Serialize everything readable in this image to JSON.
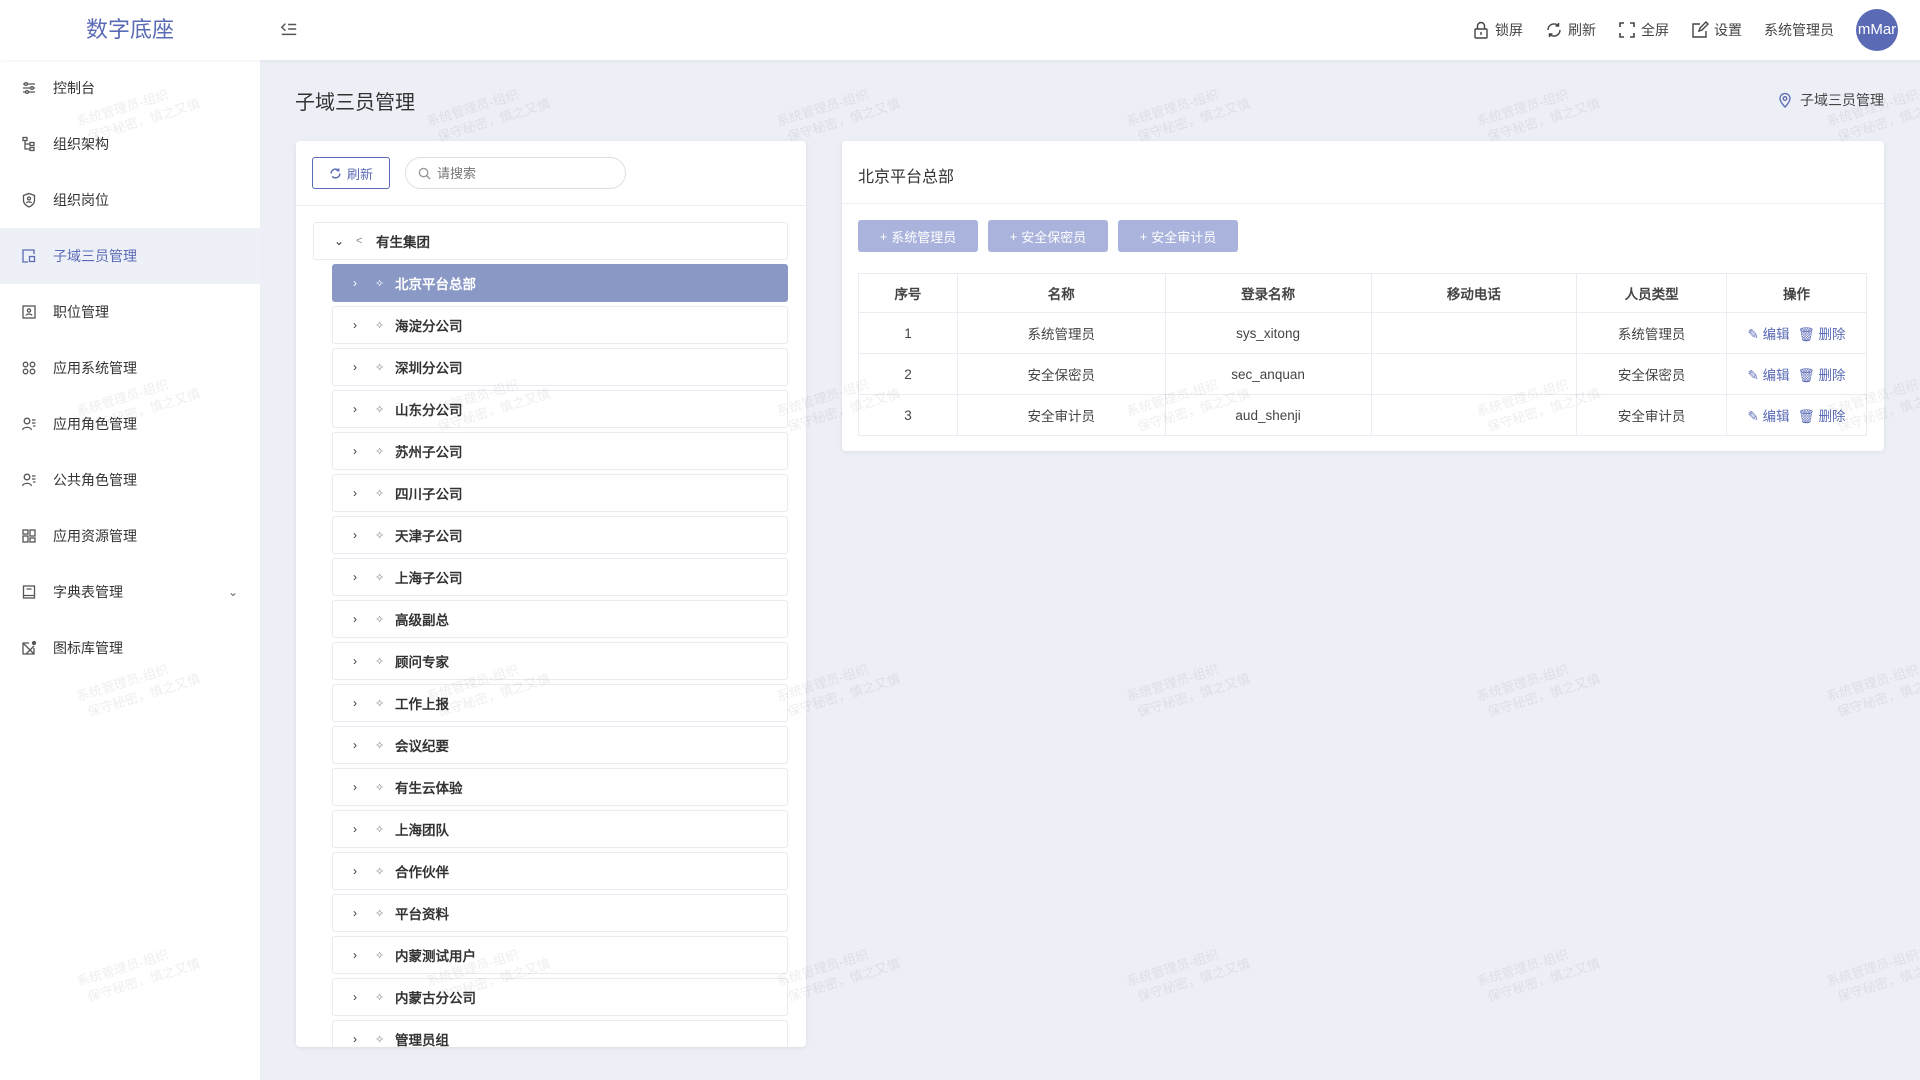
{
  "app": {
    "title": "数字底座"
  },
  "header": {
    "lock": "锁屏",
    "refresh": "刷新",
    "fullscreen": "全屏",
    "settings": "设置",
    "username": "系统管理员",
    "avatar": "mMar"
  },
  "sidebar": {
    "items": [
      {
        "label": "控制台",
        "icon": "sliders-icon"
      },
      {
        "label": "组织架构",
        "icon": "org-tree-icon"
      },
      {
        "label": "组织岗位",
        "icon": "badge-icon"
      },
      {
        "label": "子域三员管理",
        "icon": "subdomain-icon",
        "active": true
      },
      {
        "label": "职位管理",
        "icon": "position-icon"
      },
      {
        "label": "应用系统管理",
        "icon": "apps-icon"
      },
      {
        "label": "应用角色管理",
        "icon": "user-list-icon"
      },
      {
        "label": "公共角色管理",
        "icon": "user-list-icon"
      },
      {
        "label": "应用资源管理",
        "icon": "grid-icon"
      },
      {
        "label": "字典表管理",
        "icon": "book-icon",
        "expandable": true
      },
      {
        "label": "图标库管理",
        "icon": "icon-library-icon"
      }
    ]
  },
  "page": {
    "title": "子域三员管理",
    "breadcrumb": "子域三员管理"
  },
  "tree": {
    "refresh": "刷新",
    "search_placeholder": "请搜索",
    "root": "有生集团",
    "children": [
      "北京平台总部",
      "海淀分公司",
      "深圳分公司",
      "山东分公司",
      "苏州子公司",
      "四川子公司",
      "天津子公司",
      "上海子公司",
      "高级副总",
      "顾问专家",
      "工作上报",
      "会议纪要",
      "有生云体验",
      "上海团队",
      "合作伙伴",
      "平台资料",
      "内蒙测试用户",
      "内蒙古分公司",
      "管理员组"
    ],
    "selected": "北京平台总部"
  },
  "detail": {
    "title": "北京平台总部",
    "buttons": [
      "系统管理员",
      "安全保密员",
      "安全审计员"
    ],
    "columns": [
      "序号",
      "名称",
      "登录名称",
      "移动电话",
      "人员类型",
      "操作"
    ],
    "rows": [
      {
        "no": "1",
        "name": "系统管理员",
        "login": "sys_xitong",
        "phone": "",
        "type": "系统管理员"
      },
      {
        "no": "2",
        "name": "安全保密员",
        "login": "sec_anquan",
        "phone": "",
        "type": "安全保密员"
      },
      {
        "no": "3",
        "name": "安全审计员",
        "login": "aud_shenji",
        "phone": "",
        "type": "安全审计员"
      }
    ],
    "edit": "编辑",
    "delete": "删除"
  },
  "watermark": {
    "line1": "系统管理员-组织",
    "line2": "保守秘密，慎之又慎"
  },
  "colors": {
    "accent": "#5b6bb5",
    "selected": "#8a98c6",
    "add_button": "#a9b3dc",
    "background": "#eceff6"
  }
}
